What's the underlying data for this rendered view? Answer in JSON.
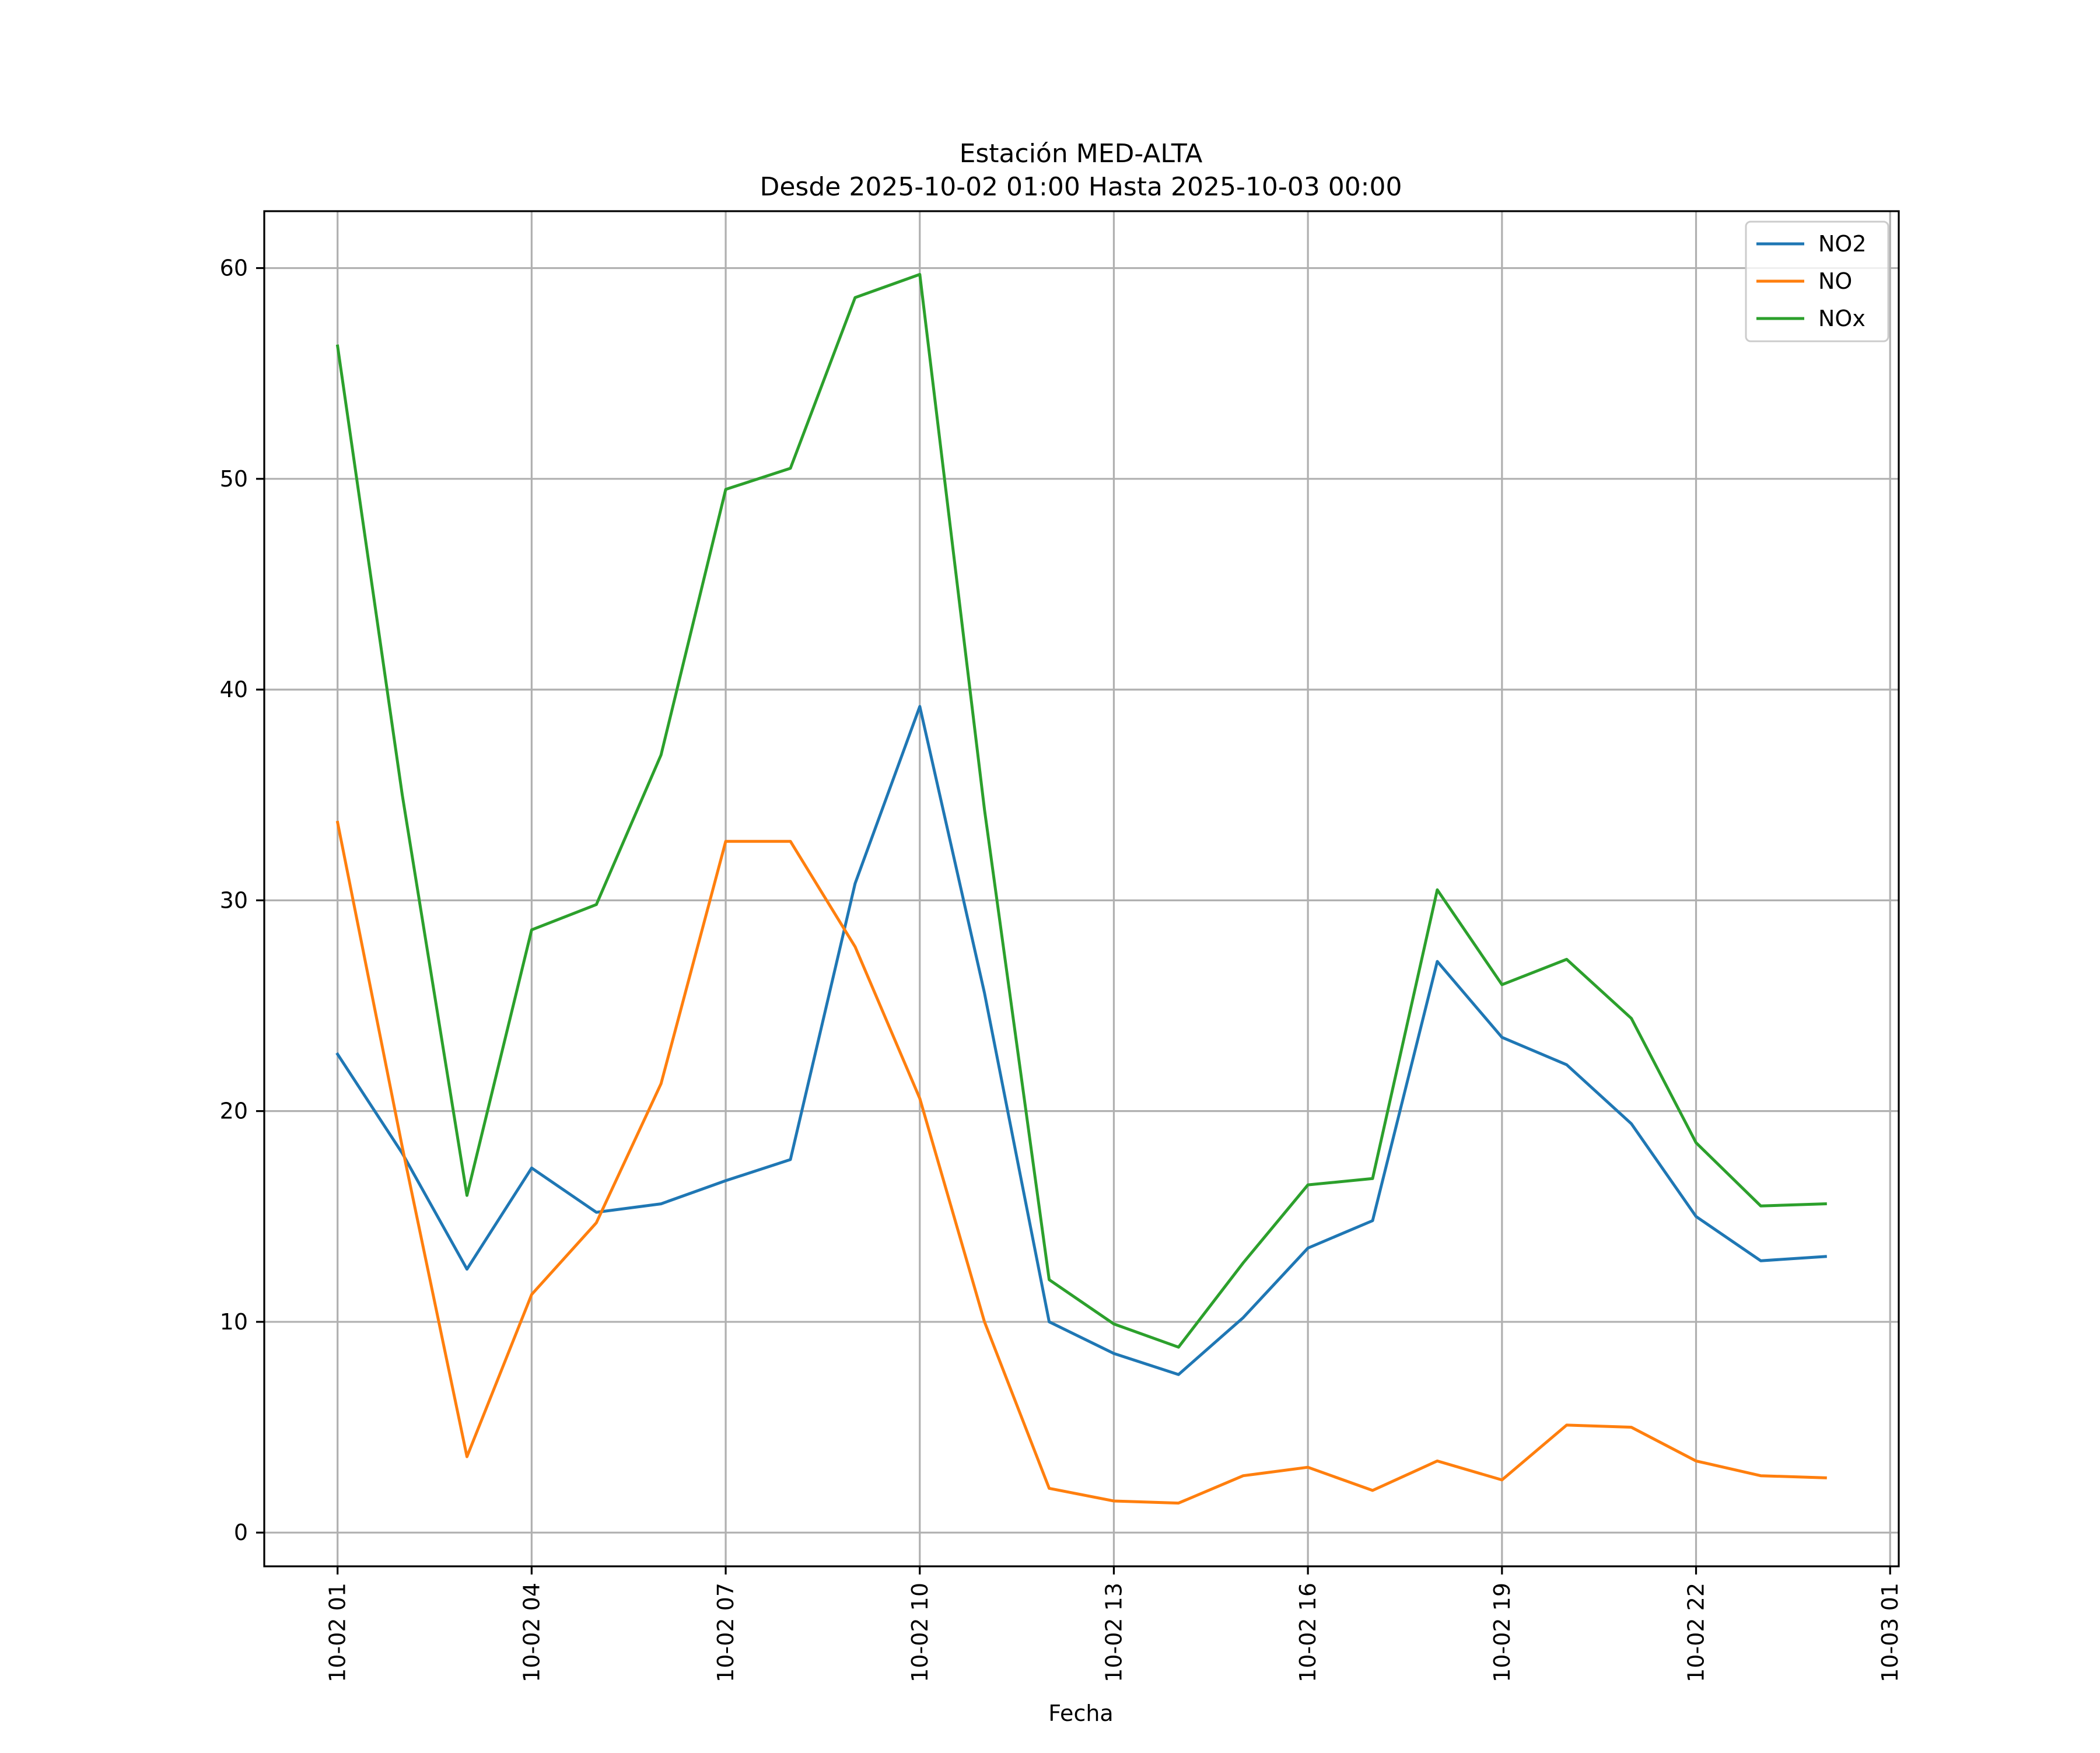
{
  "chart_data": {
    "type": "line",
    "title": "Estación MED-ALTA",
    "subtitle": "Desde 2025-10-02 01:00 Hasta 2025-10-03 00:00",
    "xlabel": "Fecha",
    "ylabel": "",
    "x": [
      "2025-10-02 01:00",
      "2025-10-02 02:00",
      "2025-10-02 03:00",
      "2025-10-02 04:00",
      "2025-10-02 05:00",
      "2025-10-02 06:00",
      "2025-10-02 07:00",
      "2025-10-02 08:00",
      "2025-10-02 09:00",
      "2025-10-02 10:00",
      "2025-10-02 11:00",
      "2025-10-02 12:00",
      "2025-10-02 13:00",
      "2025-10-02 14:00",
      "2025-10-02 15:00",
      "2025-10-02 16:00",
      "2025-10-02 17:00",
      "2025-10-02 18:00",
      "2025-10-02 19:00",
      "2025-10-02 20:00",
      "2025-10-02 21:00",
      "2025-10-02 22:00",
      "2025-10-02 23:00",
      "2025-10-03 00:00"
    ],
    "x_tick_labels": [
      "10-02 01",
      "10-02 04",
      "10-02 07",
      "10-02 10",
      "10-02 13",
      "10-02 16",
      "10-02 19",
      "10-02 22",
      "10-03 01"
    ],
    "x_ticks": [
      "2025-10-02 01:00",
      "2025-10-02 04:00",
      "2025-10-02 07:00",
      "2025-10-02 10:00",
      "2025-10-02 13:00",
      "2025-10-02 16:00",
      "2025-10-02 19:00",
      "2025-10-02 22:00",
      "2025-10-03 01:00"
    ],
    "xlim": [
      "2025-10-01 23:52",
      "2025-10-03 01:08"
    ],
    "y_ticks": [
      0,
      10,
      20,
      30,
      40,
      50,
      60
    ],
    "ylim": [
      -1.6,
      62.7
    ],
    "grid": true,
    "legend_position": "top-right",
    "series": [
      {
        "name": "NO2",
        "color": "#1f77b4",
        "values": [
          22.7,
          18.0,
          12.5,
          17.3,
          15.2,
          15.6,
          16.7,
          17.7,
          30.8,
          39.2,
          25.6,
          10.0,
          8.5,
          7.5,
          10.2,
          13.5,
          14.8,
          27.1,
          23.5,
          22.2,
          19.4,
          15.0,
          12.9,
          13.1
        ]
      },
      {
        "name": "NO",
        "color": "#ff7f0e",
        "values": [
          33.7,
          18.3,
          3.6,
          11.3,
          14.7,
          21.3,
          32.8,
          32.8,
          27.8,
          20.6,
          10.0,
          2.1,
          1.5,
          1.4,
          2.7,
          3.1,
          2.0,
          3.4,
          2.5,
          5.1,
          5.0,
          3.4,
          2.7,
          2.6
        ]
      },
      {
        "name": "NOx",
        "color": "#2ca02c",
        "values": [
          56.3,
          35.0,
          16.0,
          28.6,
          29.8,
          36.9,
          49.5,
          50.5,
          58.6,
          59.7,
          34.3,
          12.0,
          9.9,
          8.8,
          12.8,
          16.5,
          16.8,
          30.5,
          26.0,
          27.2,
          24.4,
          18.5,
          15.5,
          15.6
        ]
      }
    ]
  }
}
